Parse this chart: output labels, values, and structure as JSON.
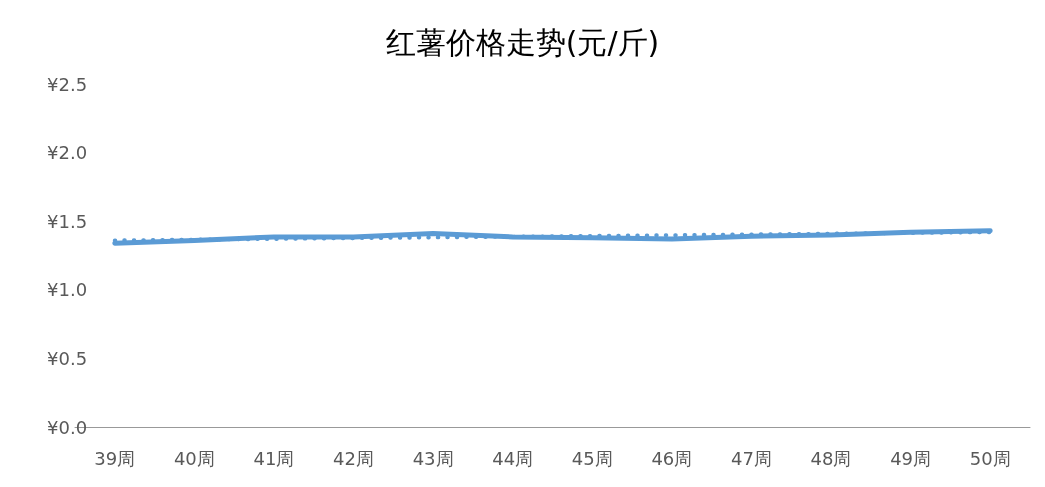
{
  "chart_data": {
    "type": "line",
    "title": "红薯价格走势(元/斤)",
    "categories": [
      "39周",
      "40周",
      "41周",
      "42周",
      "43周",
      "44周",
      "45周",
      "46周",
      "47周",
      "48周",
      "49周",
      "50周"
    ],
    "series": [
      {
        "color": "#5b9bd5",
        "line_style": "solid",
        "values": [
          1.34,
          1.36,
          1.385,
          1.385,
          1.41,
          1.385,
          1.38,
          1.37,
          1.39,
          1.4,
          1.42,
          1.43
        ]
      },
      {
        "color": "#5b9bd5",
        "line_style": "dotted",
        "values": [
          1.36,
          null,
          null,
          null,
          null,
          null,
          null,
          null,
          null,
          null,
          null,
          1.42
        ]
      }
    ],
    "ylim": [
      0,
      2.5
    ],
    "yticks": [
      {
        "value": 0,
        "label": "¥0.0"
      },
      {
        "value": 0.5,
        "label": "¥0.5"
      },
      {
        "value": 1,
        "label": "¥1.0"
      },
      {
        "value": 1.5,
        "label": "¥1.5"
      },
      {
        "value": 2,
        "label": "¥2.0"
      },
      {
        "value": 2.5,
        "label": "¥2.5"
      }
    ],
    "grid": false,
    "marker": "none"
  }
}
